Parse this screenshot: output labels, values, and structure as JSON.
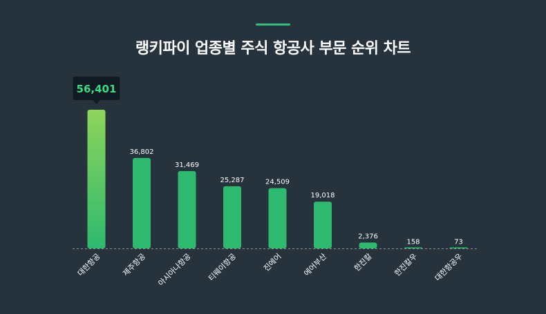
{
  "accent_color": "#2ec27e",
  "chart_data": {
    "type": "bar",
    "title": "랭키파이 업종별 주식 항공사 부문 순위 차트",
    "categories": [
      "대한항공",
      "제주항공",
      "아시아나항공",
      "티웨이항공",
      "진에어",
      "에어부산",
      "한진칼",
      "한진칼우",
      "대한항공우"
    ],
    "values": [
      56401,
      36802,
      31469,
      25287,
      24509,
      19018,
      2376,
      158,
      73
    ],
    "value_labels": [
      "56,401",
      "36,802",
      "31,469",
      "25,287",
      "24,509",
      "19,018",
      "2,376",
      "158",
      "73"
    ],
    "highlight_index": 0,
    "ylim": [
      0,
      56401
    ],
    "grid": false,
    "legend": "none",
    "colors": {
      "bar": "#2dba6f",
      "bar_top_highlight": "#8ed45a",
      "label": "#ffffff",
      "tooltip_bg": "#0f1a22",
      "tooltip_text": "#3ddc84",
      "baseline": "#8a949c"
    }
  }
}
